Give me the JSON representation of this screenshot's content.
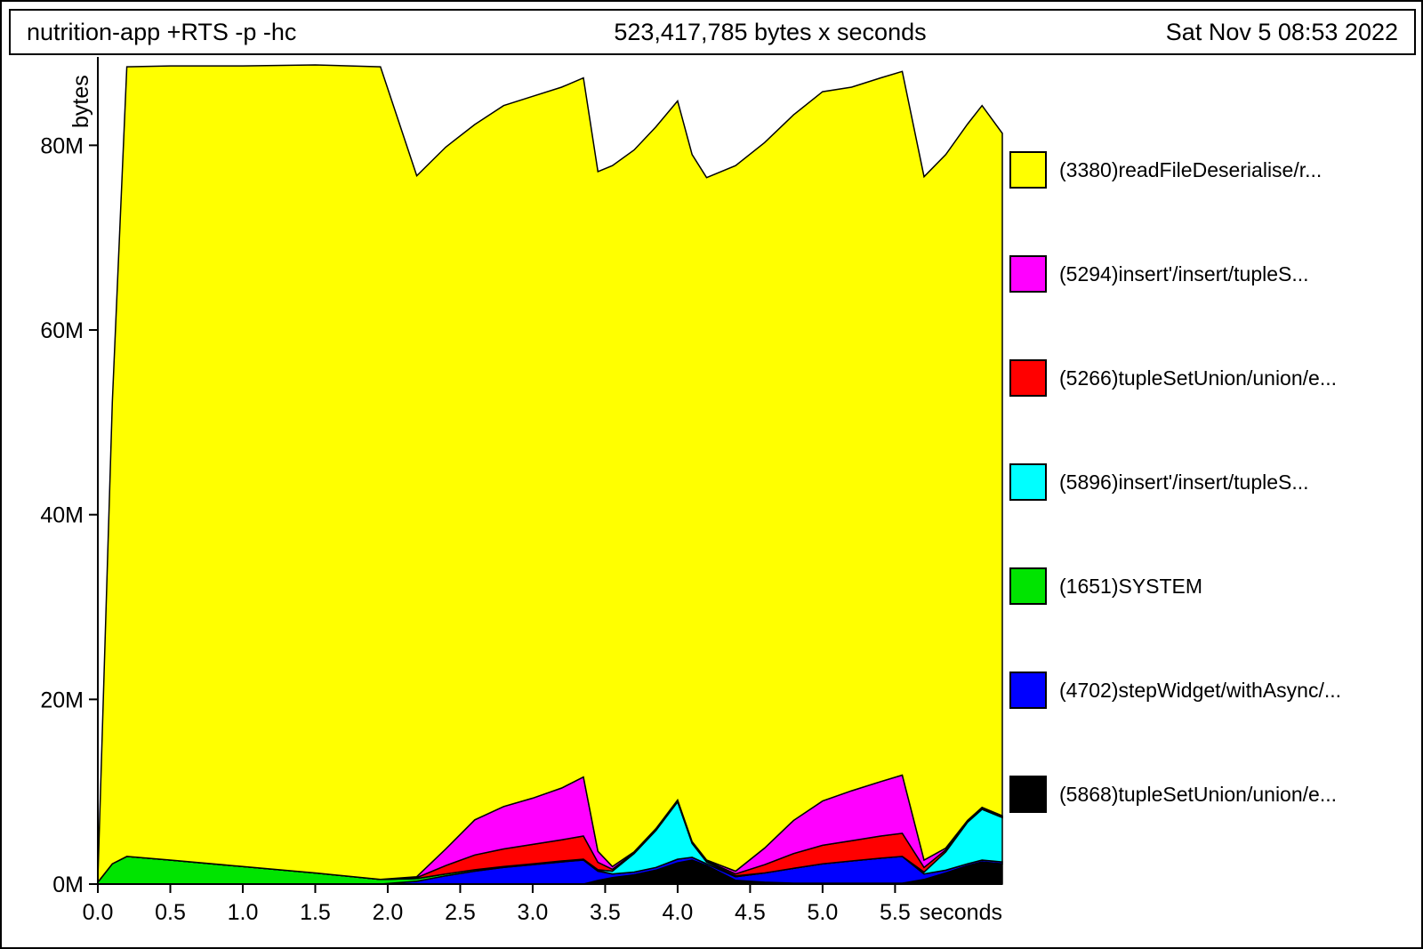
{
  "header": {
    "program": "nutrition-app +RTS -p -hc",
    "total": "523,417,785 bytes x seconds",
    "date": "Sat Nov  5 08:53 2022"
  },
  "legend": [
    {
      "label": "(3380)readFileDeserialise/r...",
      "color": "#ffff00"
    },
    {
      "label": "(5294)insert'/insert/tupleS...",
      "color": "#ff00ff"
    },
    {
      "label": "(5266)tupleSetUnion/union/e...",
      "color": "#ff0000"
    },
    {
      "label": "(5896)insert'/insert/tupleS...",
      "color": "#00ffff"
    },
    {
      "label": "(1651)SYSTEM",
      "color": "#00e400"
    },
    {
      "label": "(4702)stepWidget/withAsync/...",
      "color": "#0000ff"
    },
    {
      "label": "(5868)tupleSetUnion/union/e...",
      "color": "#000000"
    }
  ],
  "chart_data": {
    "type": "area",
    "stacked": true,
    "title": "523,417,785 bytes x seconds",
    "xlabel": "seconds",
    "ylabel": "bytes",
    "xlim": [
      0,
      6.24
    ],
    "ylim": [
      0,
      88.8
    ],
    "value_unit": "millions of bytes (M)",
    "grid": false,
    "legend_position": "right",
    "x": [
      0.0,
      0.1,
      0.2,
      0.5,
      1.0,
      1.5,
      1.95,
      2.2,
      2.4,
      2.6,
      2.8,
      3.0,
      3.2,
      3.35,
      3.45,
      3.55,
      3.7,
      3.85,
      4.0,
      4.1,
      4.2,
      4.4,
      4.6,
      4.8,
      5.0,
      5.2,
      5.4,
      5.55,
      5.7,
      5.85,
      6.0,
      6.1,
      6.24
    ],
    "series": [
      {
        "id": "tupleSetUnion-5868",
        "name": "(5868)tupleSetUnion/union/e...",
        "color": "#000000",
        "values": [
          0,
          0,
          0,
          0,
          0,
          0,
          0,
          0,
          0,
          0,
          0,
          0,
          0,
          0,
          0.4,
          0.7,
          1.0,
          1.5,
          2.3,
          2.6,
          2.0,
          0.4,
          0.2,
          0.1,
          0.1,
          0.1,
          0.1,
          0.1,
          0.5,
          1.2,
          2.0,
          2.4,
          2.2
        ]
      },
      {
        "id": "stepWidget-4702",
        "name": "(4702)stepWidget/withAsync/...",
        "color": "#0000ff",
        "values": [
          0,
          0,
          0,
          0,
          0,
          0,
          0,
          0.3,
          0.9,
          1.4,
          1.8,
          2.1,
          2.4,
          2.6,
          1.0,
          0.4,
          0.3,
          0.3,
          0.4,
          0.3,
          0.2,
          0.4,
          1.0,
          1.6,
          2.1,
          2.4,
          2.7,
          2.9,
          0.6,
          0.3,
          0.2,
          0.2,
          0.2
        ]
      },
      {
        "id": "SYSTEM-1651",
        "name": "(1651)SYSTEM",
        "color": "#00e400",
        "values": [
          0.2,
          2.2,
          3.0,
          2.6,
          1.9,
          1.2,
          0.5,
          0.3,
          0.2,
          0.15,
          0.1,
          0.1,
          0.1,
          0.1,
          0.05,
          0,
          0,
          0,
          0,
          0,
          0,
          0,
          0,
          0,
          0,
          0,
          0,
          0,
          0,
          0,
          0,
          0,
          0
        ]
      },
      {
        "id": "insert-5896",
        "name": "(5896)insert'/insert/tupleS...",
        "color": "#00ffff",
        "values": [
          0,
          0,
          0,
          0,
          0,
          0,
          0,
          0,
          0,
          0,
          0,
          0,
          0,
          0,
          0.1,
          0.3,
          2.0,
          4.0,
          6.2,
          1.5,
          0.2,
          0.1,
          0,
          0,
          0,
          0,
          0,
          0,
          0.2,
          2.0,
          4.5,
          5.5,
          4.8
        ]
      },
      {
        "id": "tupleSetUnion-5266",
        "name": "(5266)tupleSetUnion/union/e...",
        "color": "#ff0000",
        "values": [
          0,
          0,
          0,
          0,
          0,
          0,
          0,
          0.1,
          0.9,
          1.6,
          1.9,
          2.1,
          2.3,
          2.5,
          0.8,
          0.2,
          0.1,
          0.1,
          0.1,
          0.1,
          0.1,
          0.2,
          0.9,
          1.6,
          2.0,
          2.2,
          2.4,
          2.5,
          0.5,
          0.2,
          0.1,
          0.1,
          0.1
        ]
      },
      {
        "id": "insert-5294",
        "name": "(5294)insert'/insert/tupleS...",
        "color": "#ff00ff",
        "values": [
          0,
          0,
          0,
          0,
          0,
          0,
          0,
          0.1,
          1.8,
          3.8,
          4.6,
          5.0,
          5.6,
          6.4,
          1.2,
          0.3,
          0.1,
          0.1,
          0.1,
          0.1,
          0.1,
          0.3,
          1.8,
          3.6,
          4.8,
          5.4,
          5.9,
          6.3,
          0.8,
          0.2,
          0.1,
          0.1,
          0.1
        ]
      },
      {
        "id": "readFileDeserialise-3380",
        "name": "(3380)readFileDeserialise/r...",
        "color": "#ffff00",
        "values": [
          0.3,
          50,
          85.5,
          86.0,
          86.7,
          87.5,
          88.0,
          75.9,
          76.0,
          75.3,
          75.9,
          76.0,
          75.9,
          75.7,
          73.6,
          75.9,
          76.0,
          76.0,
          75.7,
          74.4,
          73.9,
          76.4,
          76.4,
          76.4,
          76.8,
          76.2,
          76.2,
          76.2,
          74.0,
          75.1,
          75.4,
          76.0,
          73.9
        ]
      }
    ],
    "x_ticks": [
      {
        "value": 0.0,
        "label": "0.0"
      },
      {
        "value": 0.5,
        "label": "0.5"
      },
      {
        "value": 1.0,
        "label": "1.0"
      },
      {
        "value": 1.5,
        "label": "1.5"
      },
      {
        "value": 2.0,
        "label": "2.0"
      },
      {
        "value": 2.5,
        "label": "2.5"
      },
      {
        "value": 3.0,
        "label": "3.0"
      },
      {
        "value": 3.5,
        "label": "3.5"
      },
      {
        "value": 4.0,
        "label": "4.0"
      },
      {
        "value": 4.5,
        "label": "4.5"
      },
      {
        "value": 5.0,
        "label": "5.0"
      },
      {
        "value": 5.5,
        "label": "5.5"
      }
    ],
    "y_ticks": [
      {
        "value": 0,
        "label": "0M"
      },
      {
        "value": 20,
        "label": "20M"
      },
      {
        "value": 40,
        "label": "40M"
      },
      {
        "value": 60,
        "label": "60M"
      },
      {
        "value": 80,
        "label": "80M"
      }
    ]
  }
}
